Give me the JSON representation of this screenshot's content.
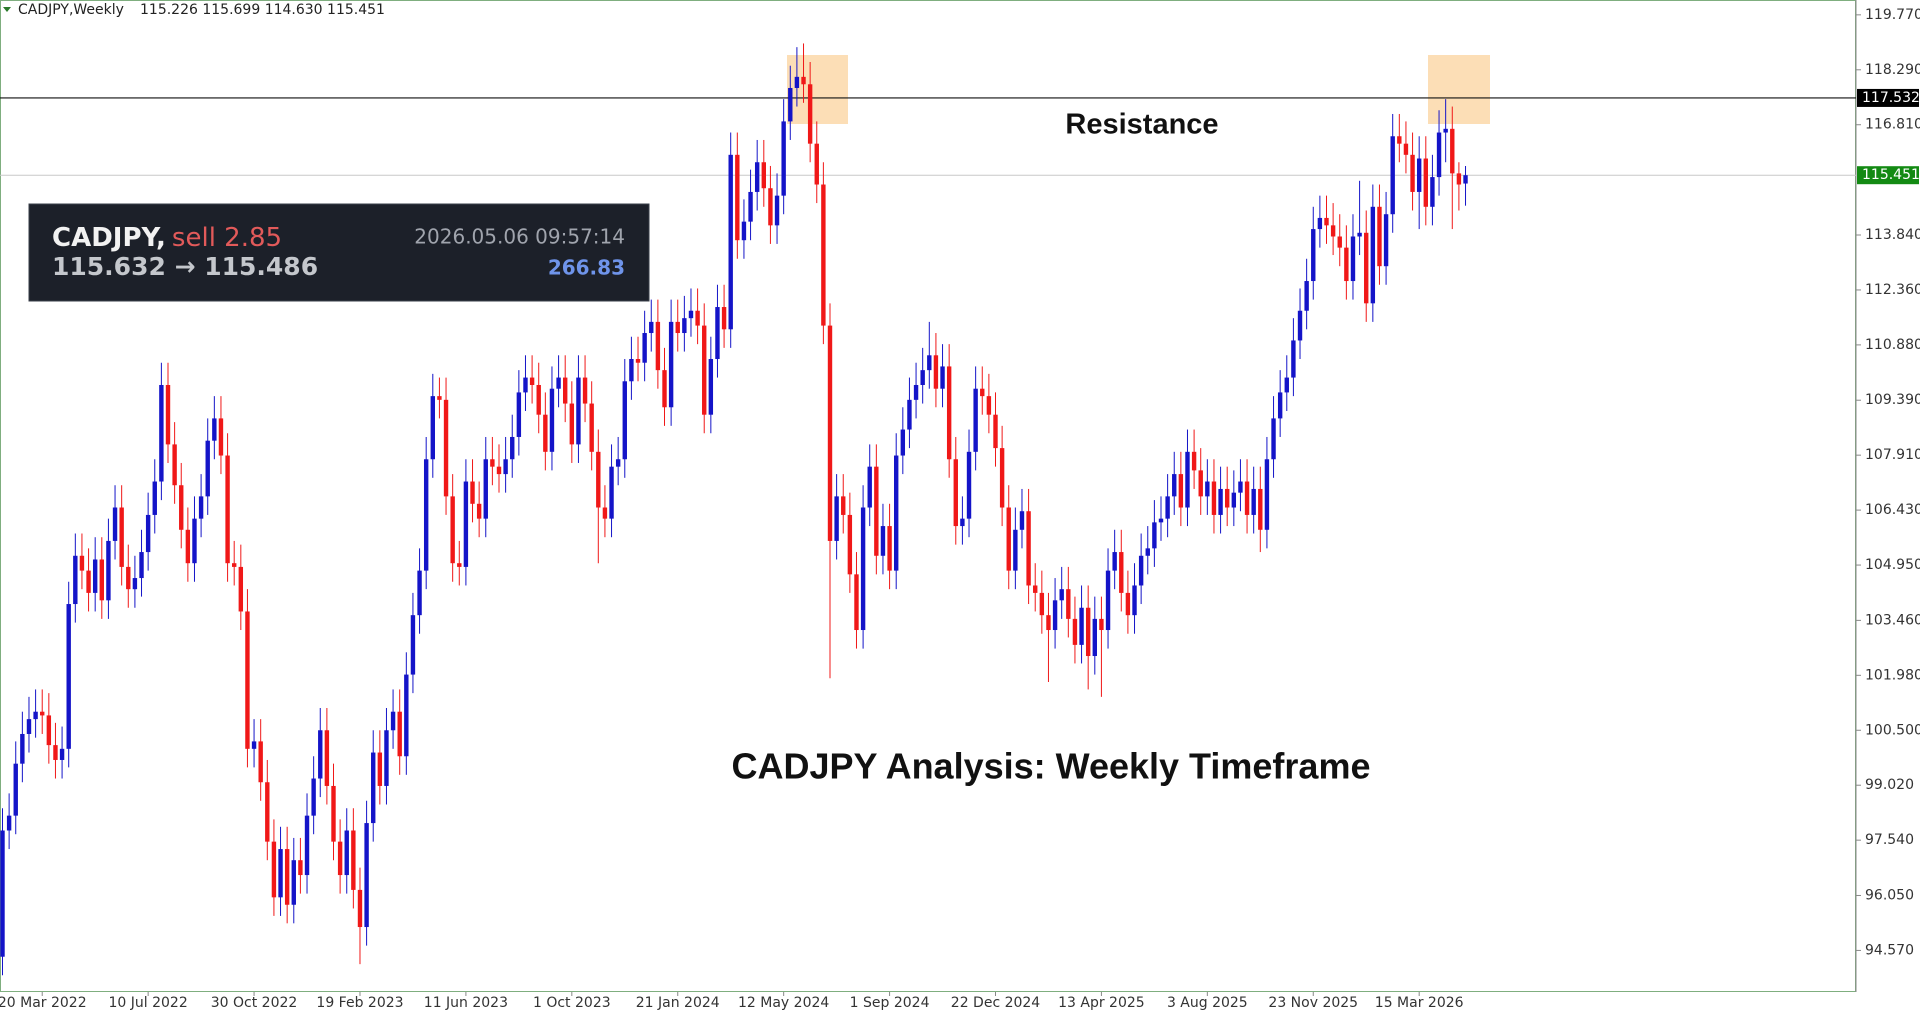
{
  "chart_data": {
    "type": "candlestick",
    "symbol_label": "CADJPY,Weekly",
    "ohlc_label": "115.226 115.699 114.630 115.451",
    "title": "CADJPY Analysis: Weekly Timeframe",
    "annotation": "Resistance",
    "resistance": 117.532,
    "last_price": 115.451,
    "up_color": "#1414c8",
    "down_color": "#f01818",
    "panel": {
      "symbol": "CADJPY,",
      "action": "sell 2.85",
      "time": "2026.05.06 09:57:14",
      "prices": "115.632 → 115.486",
      "profit": 266.83
    },
    "ylim": [
      93.45,
      120.17
    ],
    "yticks": [
      {
        "value": 94.57,
        "label": "94.570"
      },
      {
        "value": 96.05,
        "label": "96.050"
      },
      {
        "value": 97.54,
        "label": "97.540"
      },
      {
        "value": 99.02,
        "label": "99.020"
      },
      {
        "value": 100.5,
        "label": "100.500"
      },
      {
        "value": 101.98,
        "label": "101.980"
      },
      {
        "value": 103.46,
        "label": "103.460"
      },
      {
        "value": 104.95,
        "label": "104.950"
      },
      {
        "value": 106.43,
        "label": "106.430"
      },
      {
        "value": 107.91,
        "label": "107.910"
      },
      {
        "value": 109.39,
        "label": "109.390"
      },
      {
        "value": 110.88,
        "label": "110.880"
      },
      {
        "value": 112.36,
        "label": "112.360"
      },
      {
        "value": 113.84,
        "label": "113.840"
      },
      {
        "value": 116.81,
        "label": "116.810"
      },
      {
        "value": 118.29,
        "label": "118.290"
      },
      {
        "value": 119.77,
        "label": "119.770"
      }
    ],
    "xticks": [
      {
        "value": 6,
        "label": "20 Mar 2022"
      },
      {
        "value": 22,
        "label": "10 Jul 2022"
      },
      {
        "value": 38,
        "label": "30 Oct 2022"
      },
      {
        "value": 54,
        "label": "19 Feb 2023"
      },
      {
        "value": 70,
        "label": "11 Jun 2023"
      },
      {
        "value": 86,
        "label": "1 Oct 2023"
      },
      {
        "value": 102,
        "label": "21 Jan 2024"
      },
      {
        "value": 118,
        "label": "12 May 2024"
      },
      {
        "value": 134,
        "label": "1 Sep 2024"
      },
      {
        "value": 150,
        "label": "22 Dec 2024"
      },
      {
        "value": 166,
        "label": "13 Apr 2025"
      },
      {
        "value": 182,
        "label": "3 Aug 2025"
      },
      {
        "value": 198,
        "label": "23 Nov 2025"
      },
      {
        "value": 214,
        "label": "15 Mar 2026"
      }
    ],
    "open": [
      94.4,
      97.8,
      98.2,
      99.6,
      100.4,
      100.8,
      101.0,
      100.9,
      100.1,
      99.7,
      100.0,
      103.9,
      105.2,
      104.8,
      104.2,
      105.1,
      104.0,
      105.6,
      106.5,
      104.9,
      104.3,
      104.6,
      105.3,
      106.3,
      107.2,
      109.8,
      108.2,
      107.1,
      105.9,
      105.0,
      106.2,
      106.8,
      108.3,
      108.9,
      107.9,
      105.0,
      104.9,
      103.7,
      100.0,
      100.2,
      99.1,
      97.5,
      96.0,
      97.3,
      95.8,
      97.0,
      96.6,
      98.2,
      99.2,
      100.5,
      99.0,
      97.5,
      96.6,
      97.8,
      96.2,
      95.2,
      98.0,
      99.9,
      99.0,
      100.5,
      101.0,
      99.8,
      102.0,
      103.6,
      104.8,
      107.8,
      109.5,
      109.4,
      106.8,
      105.0,
      104.9,
      107.2,
      106.6,
      106.2,
      107.8,
      107.6,
      107.4,
      107.8,
      108.4,
      109.6,
      110.0,
      109.8,
      109.0,
      108.0,
      109.7,
      110.0,
      109.3,
      108.2,
      110.0,
      109.3,
      108.0,
      106.5,
      106.2,
      107.6,
      107.8,
      109.9,
      110.5,
      110.4,
      111.2,
      111.5,
      110.2,
      109.2,
      111.5,
      111.2,
      111.6,
      111.8,
      111.4,
      109.0,
      110.5,
      111.9,
      111.3,
      116.0,
      113.7,
      114.2,
      115.0,
      115.8,
      115.1,
      114.1,
      114.9,
      116.9,
      117.8,
      118.1,
      117.9,
      116.3,
      115.2,
      111.4,
      105.6,
      106.8,
      106.3,
      104.7,
      103.2,
      106.5,
      107.6,
      105.2,
      106.0,
      104.8,
      107.9,
      108.6,
      109.4,
      109.8,
      110.2,
      110.6,
      109.7,
      110.3,
      107.8,
      106.0,
      106.2,
      108.0,
      109.7,
      109.5,
      109.0,
      108.1,
      106.5,
      104.8,
      105.9,
      106.4,
      104.4,
      104.2,
      103.6,
      103.2,
      104.0,
      104.3,
      103.5,
      102.8,
      103.8,
      102.5,
      103.5,
      103.2,
      104.8,
      105.3,
      104.2,
      103.6,
      104.4,
      105.2,
      105.4,
      106.1,
      106.2,
      106.8,
      107.4,
      106.5,
      108.0,
      107.5,
      106.8,
      107.2,
      106.3,
      107.0,
      106.5,
      106.9,
      107.2,
      106.3,
      107.0,
      105.9,
      107.8,
      108.9,
      109.6,
      110.0,
      111.0,
      111.8,
      112.6,
      114.0,
      114.3,
      114.1,
      113.8,
      113.5,
      112.6,
      113.8,
      113.9,
      112.0,
      114.6,
      113.0,
      114.4,
      116.5,
      116.3,
      116.0,
      115.0,
      115.9,
      114.6,
      115.4,
      116.6,
      116.7,
      115.5,
      115.226
    ],
    "high": [
      98.4,
      98.8,
      100.2,
      101.0,
      101.4,
      101.6,
      101.6,
      101.5,
      100.7,
      100.6,
      104.5,
      105.8,
      105.8,
      105.4,
      105.7,
      105.7,
      106.2,
      107.1,
      107.1,
      105.5,
      105.2,
      105.9,
      106.9,
      107.8,
      110.4,
      110.4,
      108.8,
      107.7,
      106.5,
      106.8,
      107.4,
      108.9,
      109.5,
      109.5,
      108.5,
      105.6,
      105.5,
      104.3,
      100.8,
      100.8,
      99.7,
      98.1,
      97.9,
      97.9,
      97.6,
      97.6,
      98.8,
      99.8,
      101.1,
      101.1,
      99.6,
      98.1,
      98.4,
      98.4,
      96.8,
      98.6,
      100.5,
      100.5,
      101.1,
      101.6,
      101.6,
      102.6,
      104.2,
      105.4,
      108.4,
      110.1,
      110.0,
      110.0,
      107.4,
      105.6,
      107.8,
      107.8,
      107.2,
      108.4,
      108.4,
      108.2,
      108.4,
      109.0,
      110.2,
      110.6,
      110.6,
      110.4,
      109.6,
      110.3,
      110.6,
      110.6,
      109.9,
      110.6,
      110.6,
      109.9,
      108.6,
      107.1,
      108.2,
      108.4,
      110.5,
      111.1,
      111.1,
      111.8,
      112.1,
      112.1,
      110.8,
      112.1,
      112.1,
      112.2,
      112.4,
      112.4,
      112.0,
      111.1,
      112.5,
      112.5,
      116.6,
      116.6,
      114.8,
      115.6,
      116.4,
      116.4,
      115.7,
      115.5,
      117.5,
      118.4,
      118.9,
      119.0,
      118.5,
      116.9,
      115.8,
      112.0,
      107.4,
      107.4,
      106.9,
      105.3,
      107.1,
      108.2,
      108.2,
      106.6,
      106.6,
      108.5,
      109.2,
      110.0,
      110.4,
      110.8,
      111.5,
      111.2,
      110.9,
      110.9,
      108.4,
      106.8,
      108.6,
      110.3,
      110.3,
      110.1,
      109.6,
      108.7,
      107.1,
      106.5,
      107.0,
      107.0,
      105.0,
      104.8,
      104.2,
      104.6,
      104.9,
      104.9,
      104.1,
      104.4,
      104.4,
      104.1,
      104.1,
      105.4,
      105.9,
      105.9,
      104.8,
      105.0,
      105.8,
      106.0,
      106.7,
      106.8,
      107.4,
      108.0,
      108.0,
      108.6,
      108.6,
      108.1,
      107.8,
      107.8,
      107.6,
      107.6,
      107.5,
      107.8,
      107.8,
      107.6,
      107.6,
      108.4,
      109.5,
      110.2,
      110.6,
      111.6,
      112.4,
      113.2,
      114.6,
      114.9,
      114.9,
      114.7,
      114.4,
      114.1,
      114.4,
      115.3,
      114.5,
      115.2,
      115.2,
      115.0,
      117.1,
      117.1,
      116.9,
      116.6,
      116.5,
      116.5,
      116.0,
      117.2,
      117.5,
      117.3,
      115.8,
      115.699
    ],
    "low": [
      93.9,
      97.3,
      97.7,
      99.1,
      99.9,
      100.3,
      100.4,
      99.6,
      99.2,
      99.2,
      99.5,
      103.4,
      104.3,
      103.7,
      103.7,
      103.5,
      103.5,
      105.1,
      104.4,
      103.8,
      103.8,
      104.1,
      104.8,
      105.8,
      106.7,
      107.7,
      106.6,
      105.4,
      104.5,
      104.5,
      105.7,
      106.3,
      107.8,
      107.4,
      104.5,
      104.4,
      103.2,
      99.5,
      99.5,
      98.6,
      97.0,
      95.5,
      95.5,
      95.3,
      95.3,
      96.1,
      96.1,
      97.7,
      98.7,
      98.5,
      97.0,
      96.1,
      96.1,
      95.7,
      94.2,
      94.7,
      97.5,
      98.5,
      98.5,
      100.0,
      99.3,
      99.3,
      101.5,
      103.1,
      104.3,
      107.3,
      108.9,
      106.3,
      104.5,
      104.4,
      104.4,
      106.1,
      105.7,
      105.7,
      107.1,
      106.9,
      106.9,
      107.3,
      107.9,
      109.1,
      109.3,
      108.5,
      107.5,
      107.5,
      109.2,
      108.8,
      107.7,
      107.7,
      108.8,
      107.5,
      105.0,
      105.7,
      105.7,
      107.1,
      107.3,
      109.4,
      109.9,
      109.9,
      110.7,
      109.7,
      108.7,
      108.7,
      110.7,
      110.7,
      111.1,
      110.9,
      108.5,
      108.5,
      110.0,
      110.8,
      110.8,
      113.2,
      113.2,
      113.7,
      114.5,
      114.6,
      113.6,
      113.6,
      114.4,
      116.4,
      117.3,
      117.4,
      115.8,
      114.7,
      110.9,
      101.9,
      105.1,
      105.8,
      104.2,
      102.7,
      102.7,
      106.0,
      104.7,
      104.7,
      104.3,
      104.3,
      107.4,
      108.1,
      108.9,
      109.3,
      109.7,
      109.2,
      109.2,
      107.3,
      105.5,
      105.5,
      105.7,
      107.5,
      109.0,
      108.5,
      107.6,
      106.0,
      104.3,
      104.3,
      105.4,
      103.9,
      103.7,
      103.1,
      101.8,
      102.7,
      103.5,
      103.0,
      102.3,
      102.3,
      101.6,
      102.0,
      101.4,
      102.7,
      104.3,
      103.7,
      103.1,
      103.1,
      103.9,
      104.7,
      104.9,
      105.6,
      105.7,
      106.3,
      106.0,
      106.0,
      107.0,
      106.3,
      106.3,
      105.8,
      105.8,
      106.0,
      106.0,
      106.4,
      105.8,
      105.8,
      105.3,
      105.4,
      107.3,
      108.4,
      109.1,
      109.5,
      110.5,
      111.3,
      112.1,
      113.5,
      113.6,
      113.3,
      113.0,
      112.1,
      112.1,
      113.3,
      111.5,
      111.5,
      112.5,
      112.5,
      113.9,
      115.8,
      115.5,
      114.5,
      114.0,
      114.1,
      114.1,
      114.9,
      115.8,
      114.0,
      114.5,
      114.63
    ],
    "close": [
      97.8,
      98.2,
      99.6,
      100.4,
      100.8,
      101.0,
      100.9,
      100.1,
      99.7,
      100.0,
      103.9,
      105.2,
      104.8,
      104.2,
      105.1,
      104.0,
      105.6,
      106.5,
      104.9,
      104.3,
      104.6,
      105.3,
      106.3,
      107.2,
      109.8,
      108.2,
      107.1,
      105.9,
      105.0,
      106.2,
      106.8,
      108.3,
      108.9,
      107.9,
      105.0,
      104.9,
      103.7,
      100.0,
      100.2,
      99.1,
      97.5,
      96.0,
      97.3,
      95.8,
      97.0,
      96.6,
      98.2,
      99.2,
      100.5,
      99.0,
      97.5,
      96.6,
      97.8,
      96.2,
      95.2,
      98.0,
      99.9,
      99.0,
      100.5,
      101.0,
      99.8,
      102.0,
      103.6,
      104.8,
      107.8,
      109.5,
      109.4,
      106.8,
      105.0,
      104.9,
      107.2,
      106.6,
      106.2,
      107.8,
      107.6,
      107.4,
      107.8,
      108.4,
      109.6,
      110.0,
      109.8,
      109.0,
      108.0,
      109.7,
      110.0,
      109.3,
      108.2,
      110.0,
      109.3,
      108.0,
      106.5,
      106.2,
      107.6,
      107.8,
      109.9,
      110.5,
      110.4,
      111.2,
      111.5,
      110.2,
      109.2,
      111.5,
      111.2,
      111.6,
      111.8,
      111.4,
      109.0,
      110.5,
      111.9,
      111.3,
      116.0,
      113.7,
      114.2,
      115.0,
      115.8,
      115.1,
      114.1,
      114.9,
      116.9,
      117.8,
      118.1,
      117.9,
      116.3,
      115.2,
      111.4,
      105.6,
      106.8,
      106.3,
      104.7,
      103.2,
      106.5,
      107.6,
      105.2,
      106.0,
      104.8,
      107.9,
      108.6,
      109.4,
      109.8,
      110.2,
      110.6,
      109.7,
      110.3,
      107.8,
      106.0,
      106.2,
      108.0,
      109.7,
      109.5,
      109.0,
      108.1,
      106.5,
      104.8,
      105.9,
      106.4,
      104.4,
      104.2,
      103.6,
      103.2,
      104.0,
      104.3,
      103.5,
      102.8,
      103.8,
      102.5,
      103.5,
      103.2,
      104.8,
      105.3,
      104.2,
      103.6,
      104.4,
      105.2,
      105.4,
      106.1,
      106.2,
      106.8,
      107.4,
      106.5,
      108.0,
      107.5,
      106.8,
      107.2,
      106.3,
      107.0,
      106.5,
      106.9,
      107.2,
      106.3,
      107.0,
      105.9,
      107.8,
      108.9,
      109.6,
      110.0,
      111.0,
      111.8,
      112.6,
      114.0,
      114.3,
      114.1,
      113.8,
      113.5,
      112.6,
      113.8,
      113.9,
      112.0,
      114.6,
      113.0,
      114.4,
      116.5,
      116.3,
      116.0,
      115.0,
      115.9,
      114.6,
      115.4,
      116.6,
      116.7,
      115.5,
      115.2,
      115.451
    ]
  }
}
